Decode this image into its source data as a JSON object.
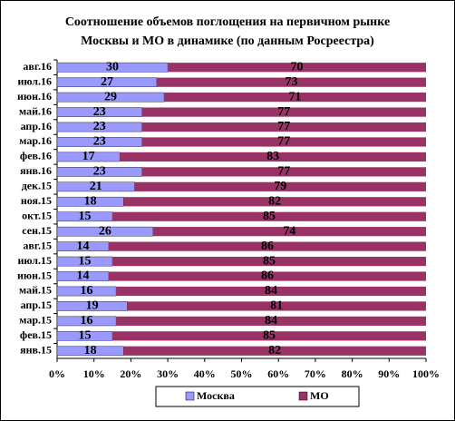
{
  "chart_data": {
    "type": "stacked-barh",
    "title": [
      "Соотношение объемов поглощения на первичном рынке",
      "Москвы и МО в динамике (по данным Росреестра)"
    ],
    "categories": [
      "авг.16",
      "июл.16",
      "июн.16",
      "май.16",
      "апр.16",
      "мар.16",
      "фев.16",
      "янв.16",
      "дек.15",
      "ноя.15",
      "окт.15",
      "сен.15",
      "авг.15",
      "июл.15",
      "июн.15",
      "май.15",
      "апр.15",
      "мар.15",
      "фев.15",
      "янв.15"
    ],
    "series": [
      {
        "name": "Москва",
        "color": "#9999ff",
        "values": [
          30,
          27,
          29,
          23,
          23,
          23,
          17,
          23,
          21,
          18,
          15,
          26,
          14,
          15,
          14,
          16,
          19,
          16,
          15,
          18
        ]
      },
      {
        "name": "МО",
        "color": "#993366",
        "values": [
          70,
          73,
          71,
          77,
          77,
          77,
          83,
          77,
          79,
          82,
          85,
          74,
          86,
          85,
          86,
          84,
          81,
          84,
          85,
          82
        ]
      }
    ],
    "xlim": [
      0,
      100
    ],
    "xticks": [
      {
        "value": 0,
        "label": "0%"
      },
      {
        "value": 10,
        "label": "10%"
      },
      {
        "value": 20,
        "label": "20%"
      },
      {
        "value": 30,
        "label": "30%"
      },
      {
        "value": 40,
        "label": "40%"
      },
      {
        "value": 50,
        "label": "50%"
      },
      {
        "value": 60,
        "label": "60%"
      },
      {
        "value": 70,
        "label": "70%"
      },
      {
        "value": 80,
        "label": "80%"
      },
      {
        "value": 90,
        "label": "90%"
      },
      {
        "value": 100,
        "label": "100%"
      }
    ],
    "grid": false,
    "legend": "bottom"
  }
}
